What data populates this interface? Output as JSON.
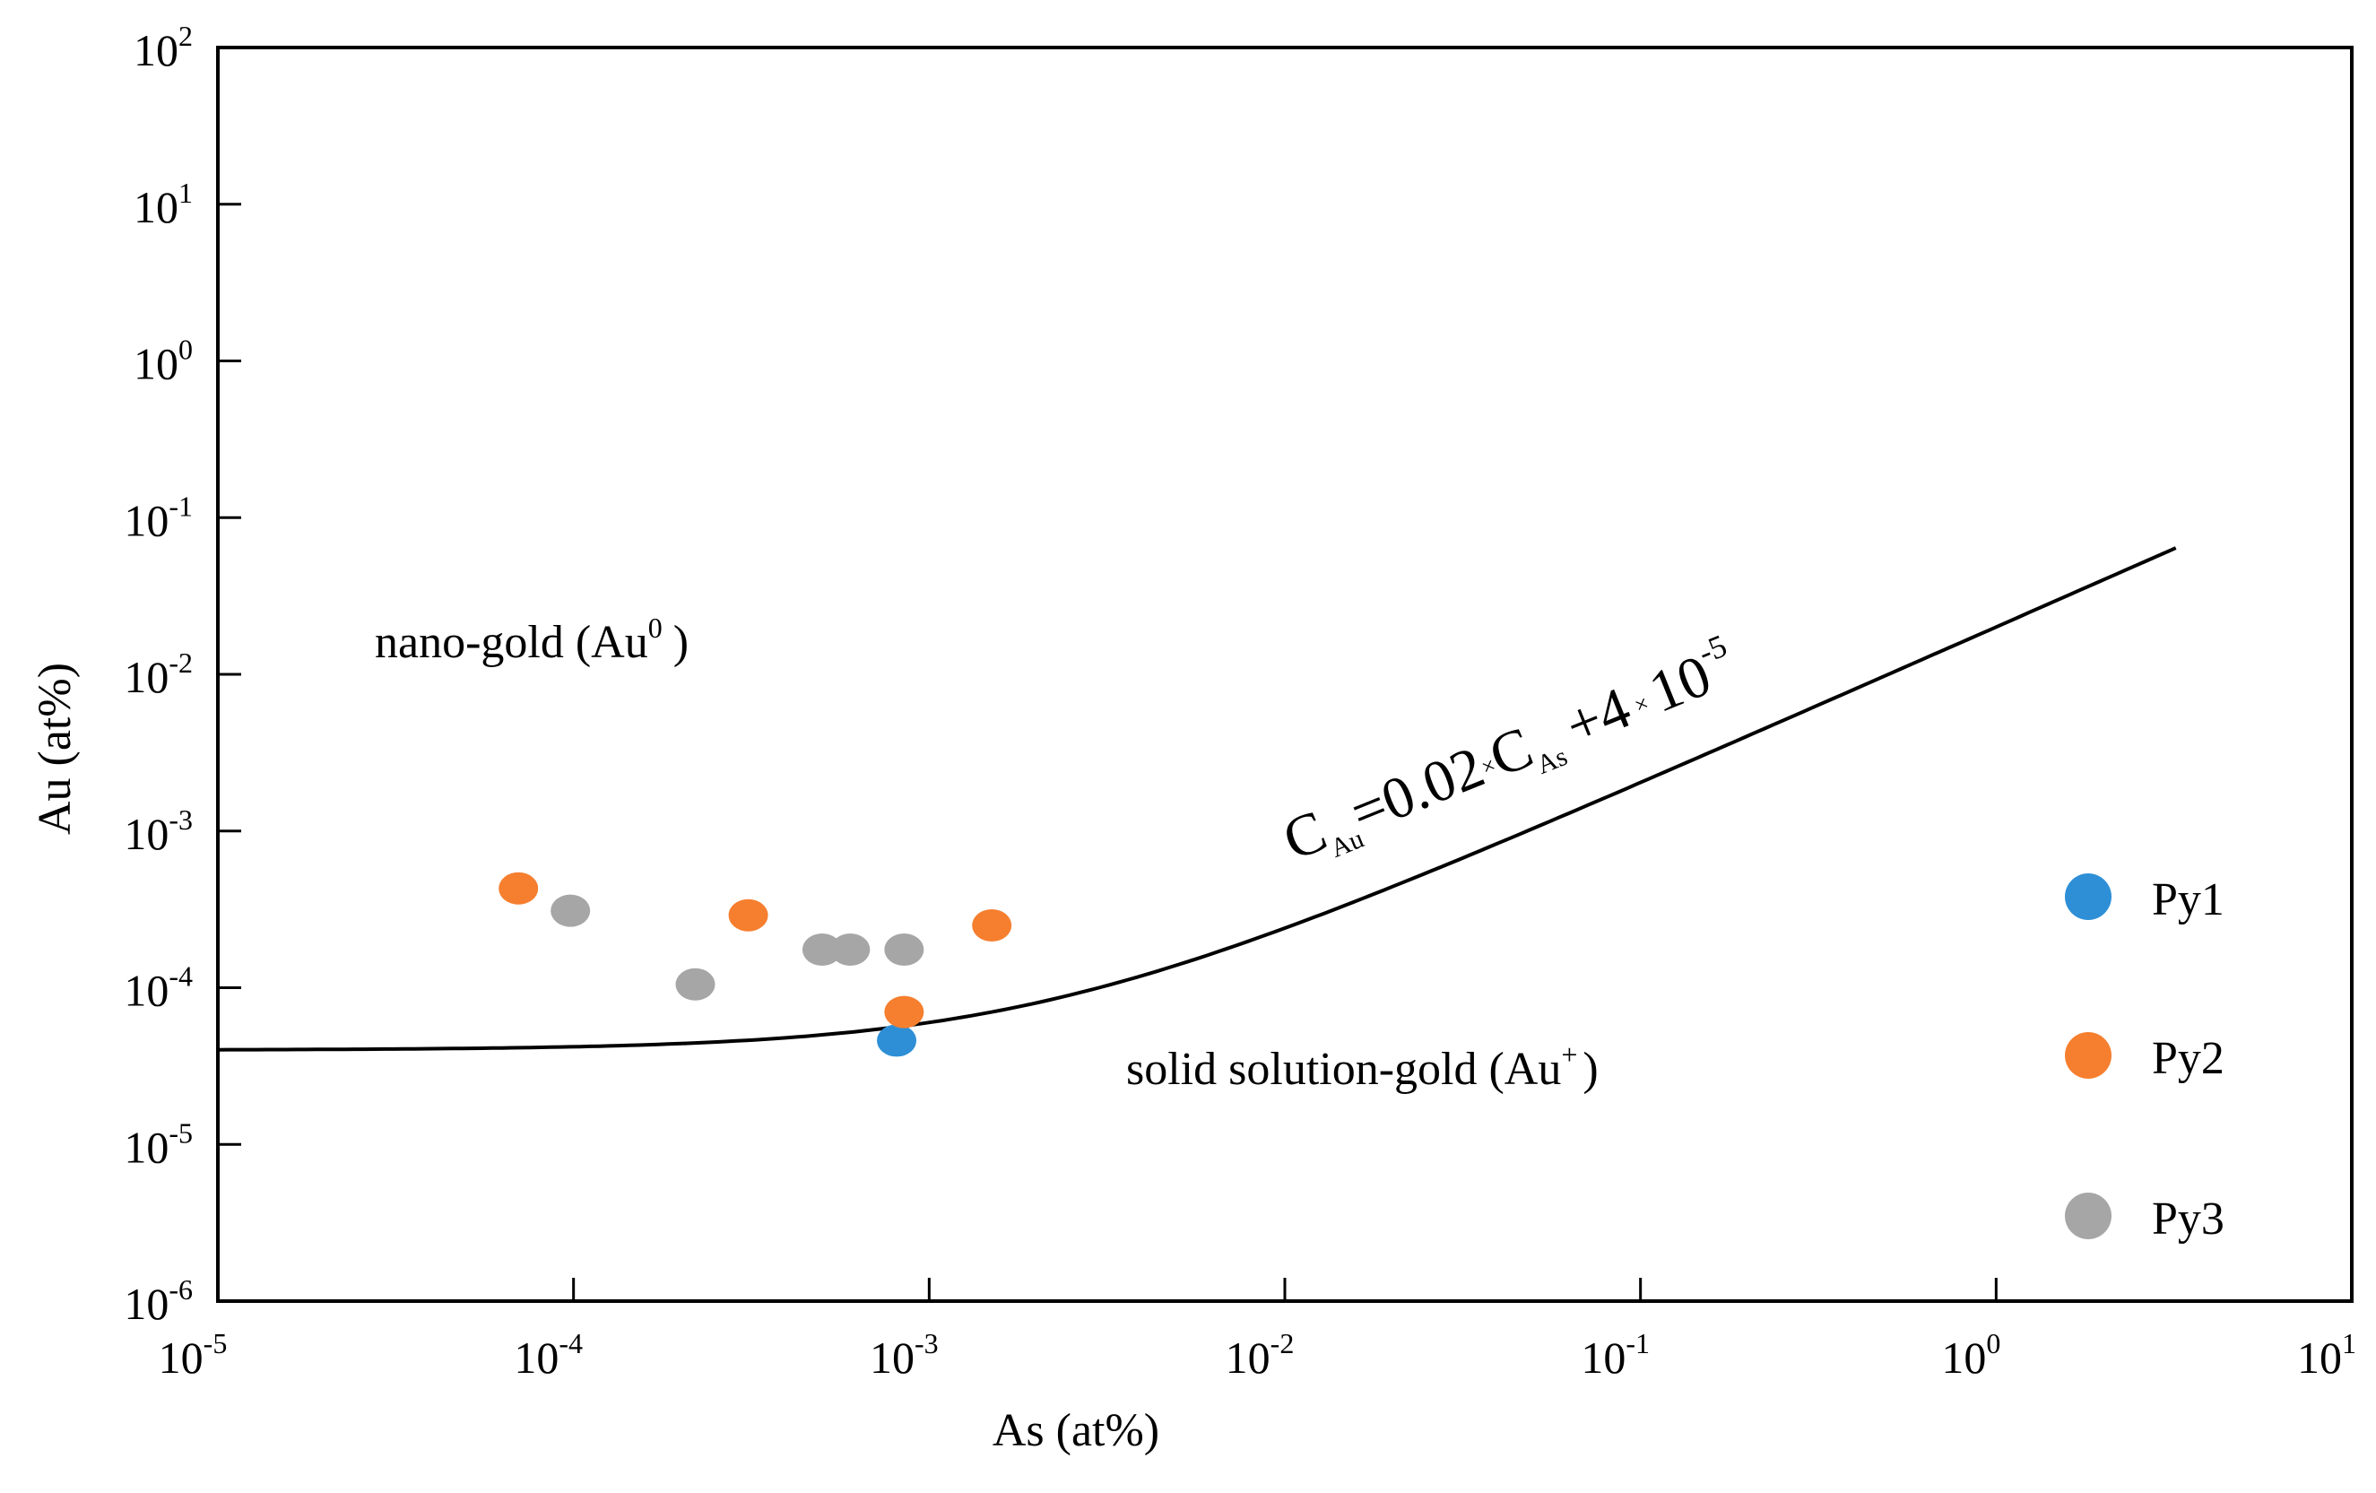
{
  "chart_data": {
    "type": "scatter",
    "title": "",
    "xlabel": "As (at%)",
    "ylabel": "Au (at%)",
    "xscale": "log",
    "yscale": "log",
    "xlim": [
      1e-05,
      10
    ],
    "ylim": [
      1e-06,
      100
    ],
    "x_ticks": [
      {
        "base": "10",
        "exp": "-5",
        "value": 1e-05
      },
      {
        "base": "10",
        "exp": "-4",
        "value": 0.0001
      },
      {
        "base": "10",
        "exp": "-3",
        "value": 0.001
      },
      {
        "base": "10",
        "exp": "-2",
        "value": 0.01
      },
      {
        "base": "10",
        "exp": "-1",
        "value": 0.1
      },
      {
        "base": "10",
        "exp": "0",
        "value": 1
      },
      {
        "base": "10",
        "exp": "1",
        "value": 10
      }
    ],
    "y_ticks": [
      {
        "base": "10",
        "exp": "-6",
        "value": 1e-06
      },
      {
        "base": "10",
        "exp": "-5",
        "value": 1e-05
      },
      {
        "base": "10",
        "exp": "-4",
        "value": 0.0001
      },
      {
        "base": "10",
        "exp": "-3",
        "value": 0.001
      },
      {
        "base": "10",
        "exp": "-2",
        "value": 0.01
      },
      {
        "base": "10",
        "exp": "-1",
        "value": 0.1
      },
      {
        "base": "10",
        "exp": "0",
        "value": 1
      },
      {
        "base": "10",
        "exp": "1",
        "value": 10
      },
      {
        "base": "10",
        "exp": "2",
        "value": 100
      }
    ],
    "series": [
      {
        "name": "Py1",
        "color": "#2e8fd6",
        "points": [
          [
            0.00081,
            4.6e-05
          ]
        ]
      },
      {
        "name": "Py2",
        "color": "#f57f2f",
        "points": [
          [
            7e-05,
            0.00043
          ],
          [
            0.00031,
            0.00029
          ],
          [
            0.00085,
            7e-05
          ],
          [
            0.0015,
            0.00025
          ]
        ]
      },
      {
        "name": "Py3",
        "color": "#a6a6a6",
        "points": [
          [
            9.8e-05,
            0.00031
          ],
          [
            0.00022,
            0.000105
          ],
          [
            0.0005,
            0.000175
          ],
          [
            0.0006,
            0.000175
          ],
          [
            0.00085,
            0.000175
          ]
        ]
      }
    ],
    "curve": {
      "name": "C_Au = 0.02 x C_As + 4 x 10^-5",
      "slope": 0.02,
      "intercept": 4e-05,
      "x_range": [
        1e-05,
        3.2
      ],
      "color": "#000000"
    },
    "equation_label": {
      "c1": "C",
      "sub1": "Au",
      "mid": "=0.02",
      "times1": "×",
      "c2": "C",
      "sub2": "As",
      "plus": "+4",
      "times2": "×",
      "ten": "10",
      "exp": "-5"
    },
    "annotations": [
      {
        "text": "nano-gold (Au",
        "sup": "0",
        "close": ")"
      },
      {
        "text": "solid solution-gold (Au",
        "sup": "+",
        "close": ")"
      }
    ],
    "legend": {
      "placement": "right"
    }
  }
}
